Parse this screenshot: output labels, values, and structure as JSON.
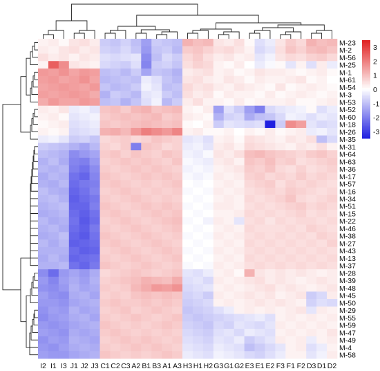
{
  "chart_data": {
    "type": "heatmap",
    "columns": [
      "I2",
      "I1",
      "I3",
      "J1",
      "J2",
      "J3",
      "C1",
      "C2",
      "C3",
      "A2",
      "B1",
      "B3",
      "A1",
      "A3",
      "H3",
      "H1",
      "H2",
      "G3",
      "G1",
      "G2",
      "E3",
      "E1",
      "E2",
      "F3",
      "F1",
      "F2",
      "D3",
      "D1",
      "D2"
    ],
    "rows": [
      "M-23",
      "M-2",
      "M-56",
      "M-25",
      "M-1",
      "M-61",
      "M-54",
      "M-3",
      "M-53",
      "M-52",
      "M-60",
      "M-18",
      "M-26",
      "M-35",
      "M-31",
      "M-64",
      "M-63",
      "M-36",
      "M-17",
      "M-57",
      "M-16",
      "M-34",
      "M-51",
      "M-15",
      "M-22",
      "M-46",
      "M-38",
      "M-27",
      "M-43",
      "M-13",
      "M-37",
      "M-28",
      "M-39",
      "M-48",
      "M-45",
      "M-50",
      "M-29",
      "M-55",
      "M-59",
      "M-47",
      "M-49",
      "M-4",
      "M-58"
    ],
    "color_scale": {
      "min": -3.5,
      "max": 3.5,
      "ticks": [
        3,
        2,
        1,
        0,
        -1,
        -2,
        -3
      ],
      "tick_labels": [
        "3",
        "2",
        "1",
        "0",
        "-1",
        "-2",
        "-3"
      ],
      "low_color": "#1f1fe0",
      "mid_color": "#ffffff",
      "high_color": "#e01f1f"
    },
    "values": [
      [
        0.2,
        0.3,
        0.1,
        0.4,
        0.5,
        0.3,
        -0.8,
        -0.9,
        -0.7,
        -1.0,
        -1.5,
        -0.8,
        -0.9,
        -1.0,
        1.2,
        1.0,
        1.1,
        0.4,
        0.3,
        0.5,
        0.1,
        -0.5,
        -0.3,
        0.4,
        0.8,
        0.6,
        1.2,
        1.0,
        1.1
      ],
      [
        0.3,
        0.2,
        0.4,
        0.5,
        0.3,
        0.4,
        -0.7,
        -0.8,
        -0.6,
        -0.9,
        -1.6,
        -0.9,
        -0.8,
        -1.1,
        0.8,
        0.9,
        0.7,
        0.5,
        0.6,
        0.4,
        0.2,
        -0.6,
        -0.4,
        0.5,
        0.9,
        0.7,
        1.0,
        1.1,
        0.9
      ],
      [
        0.5,
        0.3,
        0.4,
        0.2,
        0.4,
        0.3,
        -0.5,
        -0.6,
        -0.5,
        -0.4,
        -1.8,
        -1.0,
        -0.6,
        -0.8,
        0.6,
        0.8,
        0.5,
        0.3,
        0.4,
        0.2,
        0.3,
        -0.4,
        -0.2,
        0.4,
        0.6,
        0.5,
        0.7,
        0.8,
        0.6
      ],
      [
        0.2,
        2.5,
        1.8,
        0.4,
        0.3,
        0.2,
        -0.6,
        -0.7,
        -0.8,
        -0.5,
        -1.9,
        -0.8,
        -0.7,
        -0.9,
        0.5,
        0.7,
        0.6,
        0.2,
        0.1,
        0.3,
        0.0,
        -0.3,
        -0.1,
        0.1,
        -0.4,
        0.2,
        -0.5,
        0.3,
        -0.3
      ],
      [
        1.6,
        1.5,
        1.7,
        1.4,
        1.6,
        1.5,
        -1.0,
        -0.9,
        -1.1,
        -0.8,
        -1.4,
        -0.9,
        -1.0,
        -1.2,
        0.3,
        0.4,
        0.5,
        0.2,
        0.3,
        0.1,
        0.2,
        0.4,
        0.3,
        0.3,
        0.2,
        0.1,
        0.2,
        0.3,
        0.1
      ],
      [
        1.5,
        1.6,
        1.4,
        1.5,
        1.7,
        1.4,
        -1.1,
        -1.0,
        -0.9,
        -1.0,
        -0.3,
        -0.5,
        -0.9,
        -1.1,
        0.4,
        0.5,
        0.3,
        0.2,
        0.4,
        0.3,
        0.1,
        0.3,
        0.2,
        0.2,
        0.3,
        0.4,
        0.1,
        0.2,
        0.0
      ],
      [
        1.4,
        1.5,
        1.6,
        1.5,
        1.4,
        1.6,
        -0.9,
        -1.1,
        -1.0,
        -0.8,
        -0.2,
        -0.4,
        -1.0,
        -0.9,
        0.6,
        0.4,
        0.5,
        0.3,
        0.2,
        0.4,
        0.3,
        0.2,
        0.1,
        0.4,
        0.1,
        0.2,
        0.3,
        0.2,
        0.1
      ],
      [
        1.5,
        1.4,
        1.5,
        1.6,
        1.5,
        1.3,
        -1.2,
        -0.8,
        -0.9,
        -1.1,
        -0.4,
        -0.3,
        -0.8,
        -1.0,
        0.5,
        0.3,
        0.4,
        0.1,
        0.3,
        0.2,
        0.2,
        0.1,
        0.3,
        0.1,
        0.2,
        0.3,
        0.2,
        0.1,
        0.2
      ],
      [
        1.3,
        1.6,
        1.4,
        1.4,
        1.6,
        1.5,
        -1.0,
        -0.9,
        -1.2,
        -0.9,
        -0.5,
        -0.2,
        -1.1,
        -0.8,
        0.3,
        0.5,
        0.2,
        0.2,
        0.1,
        0.3,
        0.1,
        0.2,
        0.2,
        0.2,
        0.3,
        0.1,
        0.1,
        0.2,
        0.3
      ],
      [
        0.3,
        0.2,
        0.4,
        -0.3,
        -0.2,
        -0.4,
        0.9,
        1.0,
        0.8,
        1.1,
        1.2,
        0.9,
        1.0,
        1.1,
        0.2,
        0.1,
        0.3,
        -1.5,
        -0.5,
        -0.8,
        -1.5,
        -2.0,
        -0.6,
        -0.4,
        -0.3,
        -0.2,
        0.1,
        -0.5,
        -0.3
      ],
      [
        0.2,
        0.3,
        0.1,
        -0.4,
        -0.3,
        -0.2,
        0.8,
        0.9,
        1.0,
        0.9,
        1.0,
        1.1,
        0.8,
        0.9,
        0.3,
        0.2,
        0.1,
        -1.2,
        -0.7,
        -0.6,
        -1.3,
        -1.0,
        -0.9,
        -0.6,
        -0.2,
        -0.3,
        -0.5,
        -0.3,
        -0.4
      ],
      [
        0.1,
        0.2,
        0.3,
        -0.5,
        -0.4,
        -0.3,
        0.9,
        0.8,
        0.9,
        1.0,
        1.1,
        1.0,
        0.9,
        1.0,
        0.1,
        0.0,
        0.2,
        -0.8,
        -0.4,
        -0.5,
        -0.6,
        -0.5,
        -3.5,
        -0.8,
        1.8,
        1.5,
        -0.4,
        -0.6,
        -0.5
      ],
      [
        0.2,
        0.1,
        0.2,
        -0.6,
        -0.5,
        -0.4,
        1.2,
        1.3,
        1.1,
        1.6,
        2.0,
        1.8,
        1.6,
        1.9,
        0.2,
        0.3,
        0.1,
        0.1,
        0.2,
        0.0,
        0.2,
        0.1,
        0.3,
        0.1,
        0.2,
        0.3,
        -0.3,
        -0.2,
        -0.4
      ],
      [
        -0.3,
        -0.2,
        -0.4,
        -0.8,
        -0.7,
        -0.9,
        0.6,
        0.7,
        0.8,
        0.6,
        0.7,
        0.9,
        0.8,
        0.7,
        -0.4,
        -0.3,
        -0.5,
        0.2,
        0.3,
        0.1,
        0.5,
        0.4,
        0.3,
        0.2,
        0.4,
        0.3,
        0.5,
        -1.0,
        -0.6
      ],
      [
        -0.8,
        -0.9,
        -1.0,
        -1.2,
        -1.4,
        -1.1,
        0.7,
        0.6,
        0.8,
        -2.0,
        0.9,
        0.8,
        0.6,
        0.7,
        -0.3,
        -0.2,
        -0.4,
        0.3,
        0.4,
        0.2,
        0.6,
        0.5,
        0.4,
        0.3,
        0.2,
        0.4,
        0.3,
        0.5,
        0.2
      ],
      [
        -1.0,
        -1.1,
        -1.2,
        -1.8,
        -1.6,
        -1.4,
        0.8,
        0.9,
        0.7,
        0.9,
        0.8,
        0.7,
        0.9,
        0.8,
        -0.2,
        -0.3,
        -0.1,
        0.4,
        0.3,
        0.5,
        1.0,
        1.1,
        0.9,
        0.8,
        0.7,
        0.6,
        0.8,
        0.9,
        0.7
      ],
      [
        -1.2,
        -1.0,
        -1.3,
        -1.9,
        -2.0,
        -1.6,
        0.7,
        0.8,
        0.9,
        0.8,
        0.9,
        0.8,
        0.7,
        0.9,
        -0.1,
        -0.2,
        -0.3,
        0.3,
        0.4,
        0.2,
        0.9,
        0.8,
        1.0,
        0.7,
        0.8,
        0.5,
        0.6,
        0.7,
        0.8
      ],
      [
        -1.1,
        -1.2,
        -1.1,
        -2.0,
        -2.2,
        -1.8,
        0.8,
        0.7,
        0.8,
        0.9,
        0.8,
        0.9,
        0.8,
        0.7,
        -0.2,
        -0.1,
        -0.2,
        0.2,
        0.3,
        0.4,
        0.8,
        0.7,
        0.9,
        0.6,
        0.5,
        0.7,
        0.5,
        0.6,
        0.7
      ],
      [
        -1.3,
        -1.1,
        -1.2,
        -2.2,
        -2.4,
        -1.9,
        0.9,
        0.8,
        0.7,
        0.8,
        0.9,
        0.8,
        0.9,
        0.8,
        -0.1,
        -0.2,
        -0.1,
        0.3,
        0.2,
        0.3,
        0.7,
        0.8,
        0.6,
        0.7,
        0.6,
        0.8,
        0.6,
        0.7,
        0.6
      ],
      [
        -1.2,
        -1.3,
        -1.1,
        -2.3,
        -2.1,
        -2.0,
        0.8,
        0.9,
        0.8,
        0.7,
        0.8,
        0.7,
        0.8,
        0.9,
        0.0,
        -0.1,
        0.0,
        0.2,
        0.3,
        0.2,
        0.6,
        0.7,
        0.8,
        0.5,
        0.7,
        0.6,
        0.7,
        0.6,
        0.5
      ],
      [
        -1.0,
        -1.2,
        -1.3,
        -2.4,
        -2.2,
        -1.9,
        0.7,
        0.8,
        0.9,
        0.8,
        0.7,
        0.8,
        0.7,
        0.8,
        -0.1,
        0.0,
        -0.1,
        0.3,
        0.2,
        0.3,
        0.5,
        0.6,
        0.7,
        0.6,
        0.8,
        0.7,
        0.6,
        0.5,
        0.6
      ],
      [
        -1.1,
        -1.0,
        -1.2,
        -2.5,
        -2.3,
        -2.1,
        0.8,
        0.7,
        0.8,
        0.9,
        0.8,
        0.7,
        0.8,
        0.7,
        0.0,
        -0.1,
        0.0,
        0.2,
        0.3,
        0.2,
        0.6,
        0.5,
        0.6,
        0.7,
        0.9,
        0.6,
        0.5,
        0.6,
        0.7
      ],
      [
        -1.2,
        -1.1,
        -1.0,
        -2.4,
        -2.4,
        -2.0,
        0.9,
        0.8,
        0.7,
        0.8,
        0.9,
        0.8,
        0.9,
        0.8,
        -0.1,
        0.0,
        -0.1,
        0.3,
        0.3,
        0.2,
        0.5,
        0.6,
        0.5,
        0.6,
        0.7,
        0.8,
        0.6,
        0.7,
        0.6
      ],
      [
        -1.3,
        -1.2,
        -1.1,
        -2.3,
        -2.5,
        -2.2,
        0.8,
        0.9,
        0.8,
        0.7,
        0.8,
        0.9,
        0.8,
        0.9,
        0.0,
        -0.1,
        0.0,
        0.2,
        0.2,
        0.3,
        0.6,
        0.5,
        0.6,
        0.5,
        0.6,
        0.7,
        0.5,
        0.6,
        0.5
      ],
      [
        -1.1,
        -1.3,
        -1.2,
        -2.2,
        -2.6,
        -2.3,
        0.7,
        0.8,
        0.9,
        0.8,
        0.7,
        0.8,
        0.9,
        1.0,
        -0.1,
        0.0,
        -0.2,
        0.3,
        0.2,
        -0.4,
        0.5,
        0.6,
        0.4,
        0.6,
        0.5,
        0.6,
        0.6,
        0.5,
        0.6
      ],
      [
        -1.2,
        -1.1,
        -1.3,
        -2.3,
        -2.5,
        -2.1,
        0.8,
        0.7,
        0.8,
        0.9,
        0.8,
        0.7,
        0.8,
        0.9,
        0.0,
        -0.1,
        0.0,
        0.2,
        0.3,
        0.2,
        0.6,
        0.5,
        0.5,
        0.5,
        0.6,
        0.5,
        0.7,
        0.6,
        0.5
      ],
      [
        -1.3,
        -1.2,
        -1.0,
        -2.4,
        -2.6,
        -2.2,
        0.9,
        0.8,
        0.7,
        0.8,
        0.9,
        0.8,
        0.7,
        0.8,
        -0.1,
        0.0,
        -0.1,
        0.3,
        0.2,
        0.3,
        0.5,
        0.6,
        0.5,
        0.6,
        0.5,
        0.6,
        0.5,
        0.7,
        0.6
      ],
      [
        -1.1,
        -1.3,
        -1.1,
        -2.5,
        -2.4,
        -2.3,
        0.8,
        0.9,
        0.8,
        0.7,
        0.8,
        0.9,
        0.8,
        0.7,
        0.0,
        -0.1,
        0.0,
        0.2,
        0.3,
        0.2,
        0.6,
        0.5,
        0.6,
        0.5,
        0.6,
        0.5,
        0.6,
        0.5,
        0.7
      ],
      [
        -1.2,
        -1.2,
        -1.2,
        -2.3,
        -2.5,
        -2.4,
        0.7,
        0.8,
        0.9,
        0.8,
        0.7,
        0.8,
        0.9,
        0.8,
        -0.1,
        0.0,
        -0.1,
        0.3,
        0.2,
        0.3,
        0.5,
        0.6,
        0.5,
        0.6,
        0.5,
        0.6,
        0.5,
        0.6,
        0.5
      ],
      [
        -1.3,
        -1.1,
        -1.3,
        -2.4,
        -2.3,
        -2.2,
        0.8,
        0.7,
        0.8,
        0.9,
        0.8,
        0.7,
        0.8,
        0.9,
        0.0,
        -0.1,
        0.0,
        0.2,
        0.3,
        0.2,
        0.6,
        0.5,
        0.6,
        0.5,
        0.6,
        0.5,
        0.6,
        0.5,
        0.6
      ],
      [
        -1.2,
        -1.2,
        -1.1,
        -2.2,
        -2.4,
        -2.1,
        0.9,
        0.8,
        0.7,
        0.8,
        0.9,
        0.8,
        0.7,
        0.8,
        -0.1,
        0.0,
        -0.1,
        0.3,
        0.2,
        0.3,
        0.5,
        0.6,
        0.5,
        0.6,
        0.5,
        0.6,
        0.5,
        0.6,
        0.5
      ],
      [
        -1.8,
        -2.3,
        -1.6,
        -1.4,
        -1.6,
        -1.3,
        0.6,
        0.7,
        0.8,
        0.9,
        0.8,
        0.7,
        0.8,
        0.9,
        -0.4,
        -0.5,
        -0.3,
        0.2,
        0.3,
        0.1,
        1.2,
        0.4,
        0.3,
        0.4,
        0.3,
        0.4,
        0.3,
        0.2,
        0.3
      ],
      [
        -1.6,
        -1.9,
        -1.5,
        -1.3,
        -1.5,
        -1.2,
        0.7,
        0.8,
        0.9,
        1.0,
        1.2,
        1.1,
        1.0,
        1.3,
        -0.5,
        -0.4,
        -0.6,
        0.3,
        0.2,
        0.3,
        0.4,
        0.5,
        0.3,
        0.4,
        0.3,
        0.2,
        0.3,
        0.4,
        0.3
      ],
      [
        -1.7,
        -1.8,
        -1.6,
        -1.2,
        -1.4,
        -1.3,
        0.8,
        0.7,
        0.8,
        1.1,
        1.3,
        1.6,
        1.5,
        1.7,
        -0.6,
        -0.5,
        -0.4,
        0.2,
        0.3,
        0.2,
        0.3,
        0.4,
        0.5,
        0.3,
        0.4,
        0.3,
        0.2,
        0.3,
        0.4
      ],
      [
        -1.5,
        -1.7,
        -1.8,
        -1.3,
        -1.2,
        -1.4,
        0.7,
        0.8,
        0.7,
        0.9,
        1.0,
        0.9,
        1.0,
        0.9,
        -0.7,
        -0.6,
        -0.8,
        0.3,
        0.2,
        0.3,
        0.4,
        0.3,
        0.4,
        0.2,
        0.3,
        0.4,
        -0.8,
        -0.6,
        0.3
      ],
      [
        -1.6,
        -1.6,
        -1.7,
        -1.4,
        -1.3,
        -1.2,
        0.8,
        0.9,
        0.8,
        0.8,
        0.9,
        0.8,
        0.9,
        0.8,
        -0.8,
        -0.7,
        -0.6,
        0.2,
        0.3,
        0.2,
        0.3,
        0.4,
        0.3,
        0.4,
        0.3,
        0.2,
        -0.7,
        -0.5,
        -0.6
      ],
      [
        -1.7,
        -1.5,
        -1.6,
        -1.2,
        -1.4,
        -1.3,
        0.7,
        0.8,
        0.9,
        0.7,
        0.8,
        0.9,
        0.8,
        0.7,
        -0.9,
        -0.8,
        -0.7,
        -0.5,
        -0.3,
        0.2,
        0.3,
        0.2,
        0.3,
        0.2,
        0.3,
        0.4,
        -0.4,
        0.3,
        0.2
      ],
      [
        -1.8,
        -1.6,
        -1.5,
        -1.3,
        -1.2,
        -1.4,
        0.8,
        0.7,
        0.8,
        0.9,
        0.8,
        0.7,
        0.8,
        0.9,
        -0.8,
        -0.9,
        -0.8,
        -0.7,
        -0.6,
        -0.5,
        -0.4,
        -0.3,
        -0.5,
        0.2,
        0.3,
        0.2,
        0.3,
        0.2,
        0.3
      ],
      [
        -1.6,
        -1.7,
        -1.6,
        -1.4,
        -1.3,
        -1.2,
        0.9,
        0.8,
        0.7,
        0.8,
        0.7,
        0.8,
        0.9,
        0.8,
        -0.7,
        -0.8,
        -0.9,
        -0.6,
        -0.7,
        -0.4,
        -0.5,
        -0.6,
        -0.4,
        0.3,
        0.2,
        0.3,
        0.2,
        0.3,
        0.2
      ],
      [
        -1.5,
        -1.6,
        -1.7,
        -1.3,
        -1.4,
        -1.3,
        0.8,
        0.9,
        0.8,
        0.7,
        0.8,
        0.7,
        0.8,
        0.7,
        -0.6,
        -0.7,
        -0.8,
        -0.5,
        -0.4,
        -0.6,
        -0.3,
        -0.4,
        -0.5,
        0.2,
        0.3,
        0.2,
        0.3,
        0.2,
        0.4
      ],
      [
        -1.7,
        -1.5,
        -1.6,
        -1.2,
        -1.3,
        -1.4,
        0.7,
        0.8,
        0.9,
        0.8,
        0.9,
        0.8,
        0.7,
        0.8,
        -0.5,
        -0.6,
        -0.7,
        -0.4,
        -0.5,
        -0.3,
        -0.8,
        -0.6,
        -0.4,
        0.3,
        0.2,
        0.3,
        -0.3,
        0.2,
        0.3
      ],
      [
        -1.6,
        -1.7,
        -1.5,
        -1.3,
        -1.2,
        -1.3,
        0.8,
        0.7,
        0.8,
        0.9,
        0.8,
        0.9,
        0.8,
        0.7,
        -0.4,
        -0.5,
        -0.6,
        -0.3,
        -0.4,
        -0.5,
        -1.0,
        -0.8,
        -0.6,
        -0.4,
        0.2,
        0.3,
        -0.5,
        -0.3,
        0.2
      ],
      [
        -1.5,
        -1.6,
        -1.6,
        -1.4,
        -1.3,
        -1.2,
        0.9,
        0.8,
        0.7,
        0.8,
        0.7,
        0.8,
        0.9,
        0.8,
        -0.3,
        -0.4,
        -0.5,
        -0.2,
        -0.3,
        -0.4,
        -0.6,
        -0.7,
        -0.5,
        -0.3,
        0.2,
        0.2,
        -0.4,
        -0.2,
        0.3
      ]
    ]
  }
}
